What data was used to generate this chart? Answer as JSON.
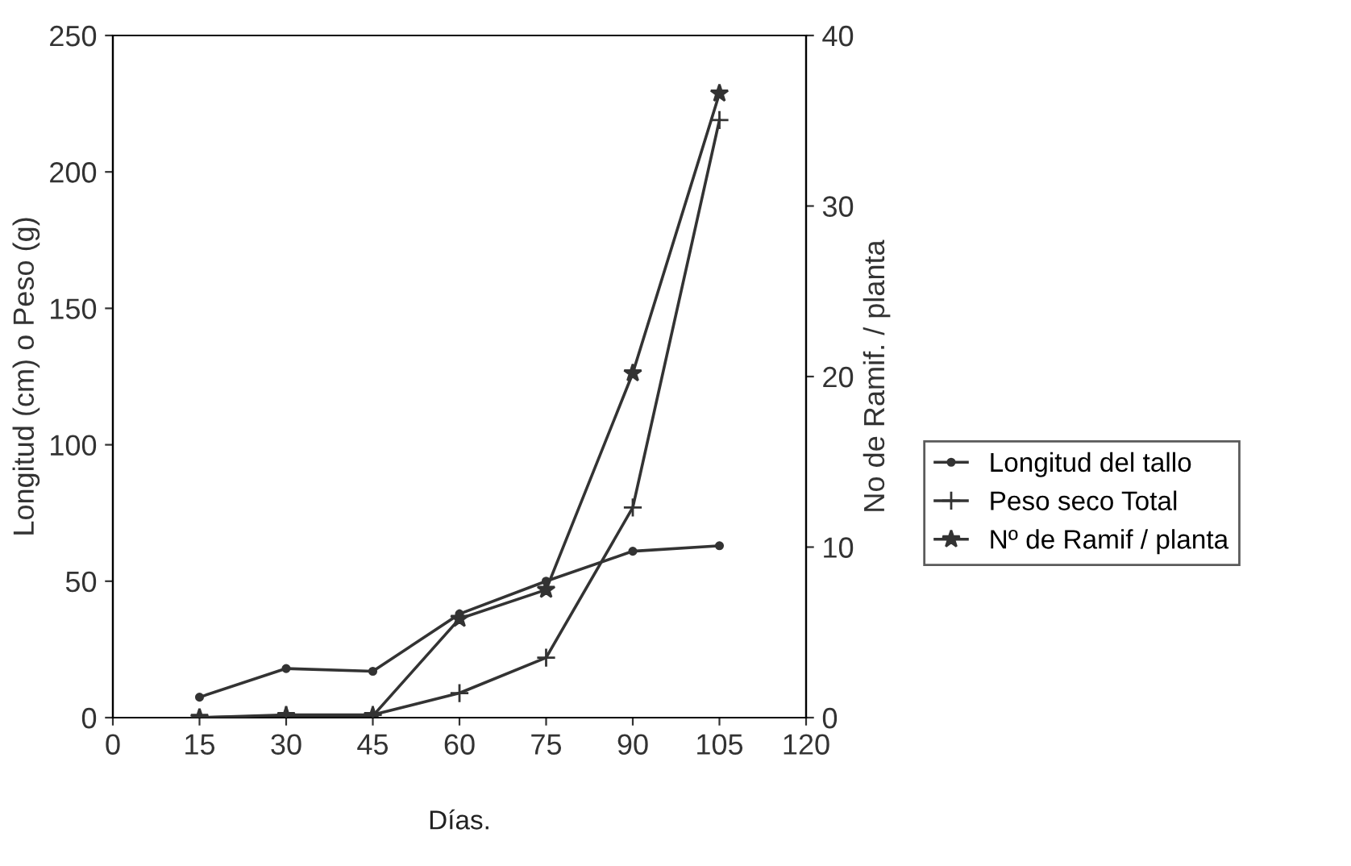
{
  "chart_data": {
    "type": "line",
    "xlabel": "Días.",
    "ylabel": "Longitud (cm) o Peso (g)",
    "y2label": "No de Ramif. / planta",
    "x": [
      15,
      30,
      45,
      60,
      75,
      90,
      105
    ],
    "series": [
      {
        "name": "Longitud del tallo",
        "color": "#333333",
        "marker": "circle",
        "values": [
          7.5,
          18,
          17,
          38,
          50,
          61,
          63
        ]
      },
      {
        "name": "Peso seco Total",
        "color": "#333333",
        "marker": "cross",
        "values": [
          0,
          1,
          1,
          9,
          22,
          77,
          219
        ]
      },
      {
        "name": "Nº de Ramif / planta",
        "color": "#333333",
        "marker": "star",
        "axis": "y2",
        "values": [
          0,
          0.1,
          0.1,
          5.8,
          7.5,
          20.2,
          36.6
        ]
      }
    ],
    "xlim": [
      0,
      120
    ],
    "xticks": [
      0,
      15,
      30,
      45,
      60,
      75,
      90,
      105,
      120
    ],
    "ylim": [
      0,
      250
    ],
    "yticks": [
      0,
      50,
      100,
      150,
      200,
      250
    ],
    "y2lim": [
      0,
      40
    ],
    "y2ticks": [
      0,
      10,
      20,
      30,
      40
    ],
    "grid": false,
    "legend": "right",
    "line_style": "solid"
  }
}
